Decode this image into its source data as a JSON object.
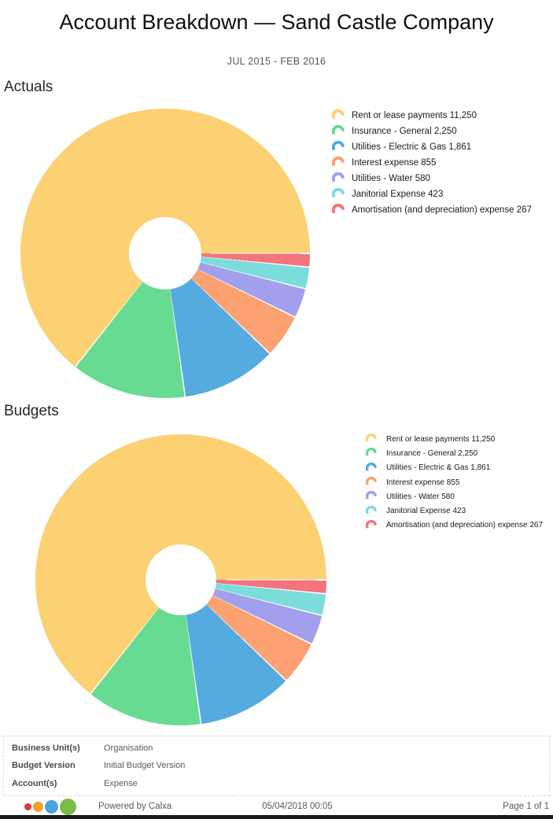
{
  "page": {
    "title": "Account Breakdown — Sand Castle Company",
    "subtitle": "JUL 2015 - FEB 2016"
  },
  "chart_data": [
    {
      "type": "pie",
      "title": "Actuals",
      "donut": true,
      "legend_position": "right",
      "categories": [
        "Rent or lease payments",
        "Insurance - General",
        "Utilities - Electric & Gas",
        "Interest expense",
        "Utilities - Water",
        "Janitorial Expense",
        "Amortisation (and depreciation) expense"
      ],
      "values": [
        11250,
        2250,
        1861,
        855,
        580,
        423,
        267
      ],
      "colors": [
        "#FBD174",
        "#68DB92",
        "#55ABE0",
        "#FCA172",
        "#A2A0EC",
        "#7BDDDB",
        "#F4747E"
      ]
    },
    {
      "type": "pie",
      "title": "Budgets",
      "donut": true,
      "legend_position": "right",
      "categories": [
        "Rent or lease payments",
        "Insurance - General",
        "Utilities - Electric & Gas",
        "Interest expense",
        "Utilities - Water",
        "Janitorial Expense",
        "Amortisation (and depreciation) expense"
      ],
      "values": [
        11250,
        2250,
        1861,
        855,
        580,
        423,
        267
      ],
      "colors": [
        "#FBD174",
        "#68DB92",
        "#55ABE0",
        "#FCA172",
        "#A2A0EC",
        "#7BDDDB",
        "#F4747E"
      ]
    }
  ],
  "details": {
    "rows": [
      {
        "label": "Business Unit(s)",
        "value": "Organisation"
      },
      {
        "label": "Budget Version",
        "value": "Initial Budget Version"
      },
      {
        "label": "Account(s)",
        "value": "Expense"
      }
    ]
  },
  "footer": {
    "powered_by": "Powered by Calxa",
    "timestamp": "05/04/2018 00:05",
    "page": "Page 1 of 1",
    "logo_colors": [
      "#D93A33",
      "#F2A02C",
      "#4BA4DB",
      "#7ABC47"
    ],
    "bar_color": "#17191D"
  }
}
